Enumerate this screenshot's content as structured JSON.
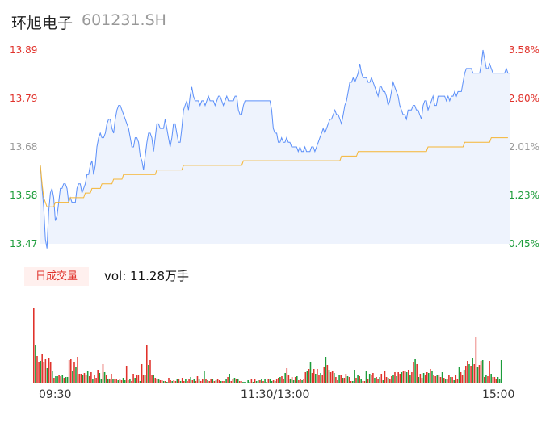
{
  "header": {
    "name": "环旭电子",
    "code": "601231.SH"
  },
  "volume_panel": {
    "tab_label": "日成交量",
    "vol_text": "vol: 11.28万手"
  },
  "x_axis": {
    "labels": [
      "09:30",
      "11:30/13:00",
      "15:00"
    ]
  },
  "colors": {
    "price_line": "#5b8ff9",
    "avg_line": "#f5b533",
    "area_fill": "#eef3fd",
    "up": "#e0322b",
    "down": "#1c9c3a"
  },
  "chart_data": [
    {
      "type": "line",
      "title": "环旭电子 601231.SH",
      "y_left_ticks": [
        "13.89",
        "13.79",
        "13.68",
        "13.58",
        "13.47"
      ],
      "y_right_ticks": [
        "3.58%",
        "2.80%",
        "2.01%",
        "1.23%",
        "0.45%"
      ],
      "ylim": [
        13.47,
        13.89
      ],
      "x_ticks": [
        "09:30",
        "11:30/13:00",
        "15:00"
      ],
      "series": [
        {
          "values": [
            13.64,
            13.59,
            13.55,
            13.48,
            13.46,
            13.54,
            13.58,
            13.59,
            13.57,
            13.52,
            13.53,
            13.56,
            13.59,
            13.59,
            13.6,
            13.6,
            13.59,
            13.56,
            13.57,
            13.56,
            13.56,
            13.56,
            13.59,
            13.6,
            13.6,
            13.58,
            13.59,
            13.6,
            13.62,
            13.62,
            13.64,
            13.65,
            13.62,
            13.64,
            13.68,
            13.7,
            13.71,
            13.7,
            13.7,
            13.71,
            13.73,
            13.74,
            13.74,
            13.72,
            13.71,
            13.74,
            13.76,
            13.77,
            13.77,
            13.76,
            13.75,
            13.74,
            13.73,
            13.72,
            13.7,
            13.68,
            13.68,
            13.7,
            13.7,
            13.69,
            13.66,
            13.65,
            13.63,
            13.66,
            13.69,
            13.71,
            13.71,
            13.7,
            13.67,
            13.7,
            13.73,
            13.73,
            13.72,
            13.72,
            13.72,
            13.74,
            13.72,
            13.7,
            13.68,
            13.7,
            13.73,
            13.73,
            13.71,
            13.69,
            13.69,
            13.72,
            13.76,
            13.77,
            13.78,
            13.76,
            13.79,
            13.81,
            13.79,
            13.78,
            13.78,
            13.78,
            13.77,
            13.78,
            13.78,
            13.77,
            13.78,
            13.79,
            13.78,
            13.78,
            13.78,
            13.77,
            13.78,
            13.79,
            13.79,
            13.78,
            13.77,
            13.78,
            13.79,
            13.78,
            13.78,
            13.78,
            13.78,
            13.79,
            13.79,
            13.76,
            13.75,
            13.75,
            13.77,
            13.78,
            13.78,
            13.78,
            13.78,
            13.78,
            13.78,
            13.78,
            13.78,
            13.78,
            13.78,
            13.78,
            13.78,
            13.78,
            13.78,
            13.78,
            13.78,
            13.76,
            13.72,
            13.71,
            13.71,
            13.69,
            13.69,
            13.7,
            13.69,
            13.69,
            13.7,
            13.69,
            13.69,
            13.68,
            13.68,
            13.68,
            13.68,
            13.67,
            13.68,
            13.67,
            13.67,
            13.68,
            13.67,
            13.67,
            13.67,
            13.68,
            13.68,
            13.67,
            13.68,
            13.69,
            13.7,
            13.71,
            13.72,
            13.71,
            13.72,
            13.73,
            13.74,
            13.74,
            13.75,
            13.76,
            13.75,
            13.75,
            13.74,
            13.73,
            13.75,
            13.77,
            13.78,
            13.8,
            13.82,
            13.82,
            13.83,
            13.82,
            13.83,
            13.84,
            13.86,
            13.84,
            13.83,
            13.83,
            13.83,
            13.82,
            13.82,
            13.83,
            13.82,
            13.81,
            13.8,
            13.79,
            13.81,
            13.81,
            13.8,
            13.8,
            13.79,
            13.77,
            13.78,
            13.8,
            13.82,
            13.81,
            13.8,
            13.79,
            13.77,
            13.76,
            13.75,
            13.75,
            13.74,
            13.76,
            13.76,
            13.76,
            13.77,
            13.77,
            13.76,
            13.76,
            13.75,
            13.74,
            13.77,
            13.78,
            13.78,
            13.76,
            13.77,
            13.78,
            13.79,
            13.77,
            13.77,
            13.79,
            13.79,
            13.79,
            13.79,
            13.79,
            13.78,
            13.79,
            13.78,
            13.79,
            13.79,
            13.8,
            13.79,
            13.8,
            13.8,
            13.8,
            13.82,
            13.84,
            13.85,
            13.85,
            13.85,
            13.85,
            13.84,
            13.84,
            13.84,
            13.84,
            13.84,
            13.86,
            13.89,
            13.87,
            13.85,
            13.85,
            13.86,
            13.85,
            13.84,
            13.84,
            13.84,
            13.84,
            13.84,
            13.84,
            13.84,
            13.84,
            13.85,
            13.84,
            13.84
          ]
        },
        {
          "values": [
            13.64,
            13.6,
            13.57,
            13.56,
            13.55,
            13.55,
            13.55,
            13.55,
            13.55,
            13.56,
            13.56,
            13.56,
            13.56,
            13.56,
            13.56,
            13.56,
            13.56,
            13.56,
            13.57,
            13.57,
            13.57,
            13.57,
            13.57,
            13.57,
            13.57,
            13.57,
            13.57,
            13.58,
            13.58,
            13.58,
            13.58,
            13.59,
            13.59,
            13.59,
            13.59,
            13.59,
            13.59,
            13.6,
            13.6,
            13.6,
            13.6,
            13.6,
            13.6,
            13.6,
            13.61,
            13.61,
            13.61,
            13.61,
            13.61,
            13.61,
            13.62,
            13.62,
            13.62,
            13.62,
            13.62,
            13.62,
            13.62,
            13.62,
            13.62,
            13.62,
            13.62,
            13.62,
            13.62,
            13.62,
            13.62,
            13.62,
            13.62,
            13.62,
            13.62,
            13.62,
            13.63,
            13.63,
            13.63,
            13.63,
            13.63,
            13.63,
            13.63,
            13.63,
            13.63,
            13.63,
            13.63,
            13.63,
            13.63,
            13.63,
            13.63,
            13.63,
            13.64,
            13.64,
            13.64,
            13.64,
            13.64,
            13.64,
            13.64,
            13.64,
            13.64,
            13.64,
            13.64,
            13.64,
            13.64,
            13.64,
            13.64,
            13.64,
            13.64,
            13.64,
            13.64,
            13.64,
            13.64,
            13.64,
            13.64,
            13.64,
            13.64,
            13.64,
            13.64,
            13.64,
            13.64,
            13.64,
            13.64,
            13.64,
            13.64,
            13.64,
            13.64,
            13.64,
            13.65,
            13.65,
            13.65,
            13.65,
            13.65,
            13.65,
            13.65,
            13.65,
            13.65,
            13.65,
            13.65,
            13.65,
            13.65,
            13.65,
            13.65,
            13.65,
            13.65,
            13.65,
            13.65,
            13.65,
            13.65,
            13.65,
            13.65,
            13.65,
            13.65,
            13.65,
            13.65,
            13.65,
            13.65,
            13.65,
            13.65,
            13.65,
            13.65,
            13.65,
            13.65,
            13.65,
            13.65,
            13.65,
            13.65,
            13.65,
            13.65,
            13.65,
            13.65,
            13.65,
            13.65,
            13.65,
            13.65,
            13.65,
            13.65,
            13.65,
            13.65,
            13.65,
            13.65,
            13.65,
            13.65,
            13.65,
            13.65,
            13.65,
            13.65,
            13.66,
            13.66,
            13.66,
            13.66,
            13.66,
            13.66,
            13.66,
            13.66,
            13.66,
            13.66,
            13.67,
            13.67,
            13.67,
            13.67,
            13.67,
            13.67,
            13.67,
            13.67,
            13.67,
            13.67,
            13.67,
            13.67,
            13.67,
            13.67,
            13.67,
            13.67,
            13.67,
            13.67,
            13.67,
            13.67,
            13.67,
            13.67,
            13.67,
            13.67,
            13.67,
            13.67,
            13.67,
            13.67,
            13.67,
            13.67,
            13.67,
            13.67,
            13.67,
            13.67,
            13.67,
            13.67,
            13.67,
            13.67,
            13.67,
            13.67,
            13.67,
            13.67,
            13.68,
            13.68,
            13.68,
            13.68,
            13.68,
            13.68,
            13.68,
            13.68,
            13.68,
            13.68,
            13.68,
            13.68,
            13.68,
            13.68,
            13.68,
            13.68,
            13.68,
            13.68,
            13.68,
            13.68,
            13.68,
            13.68,
            13.69,
            13.69,
            13.69,
            13.69,
            13.69,
            13.69,
            13.69,
            13.69,
            13.69,
            13.69,
            13.69,
            13.69,
            13.69,
            13.69,
            13.69,
            13.69,
            13.7,
            13.7,
            13.7,
            13.7,
            13.7,
            13.7,
            13.7,
            13.7,
            13.7,
            13.7,
            13.7
          ]
        }
      ]
    },
    {
      "type": "bar",
      "title": "日成交量",
      "values": [
        93,
        48,
        34,
        27,
        28,
        36,
        26,
        30,
        19,
        32,
        27,
        15,
        7,
        9,
        9,
        10,
        9,
        11,
        7,
        8,
        8,
        29,
        30,
        16,
        27,
        20,
        33,
        12,
        12,
        11,
        13,
        11,
        15,
        9,
        14,
        5,
        10,
        7,
        17,
        13,
        5,
        24,
        14,
        10,
        5,
        6,
        12,
        5,
        6,
        6,
        4,
        6,
        4,
        7,
        4,
        21,
        4,
        6,
        3,
        12,
        7,
        10,
        11,
        3,
        24,
        11,
        11,
        48,
        23,
        29,
        10,
        10,
        7,
        6,
        5,
        4,
        4,
        3,
        3,
        2,
        7,
        4,
        3,
        4,
        3,
        6,
        6,
        3,
        7,
        3,
        5,
        3,
        5,
        8,
        4,
        5,
        3,
        9,
        5,
        3,
        5,
        15,
        6,
        4,
        3,
        5,
        6,
        3,
        4,
        5,
        4,
        3,
        3,
        3,
        6,
        8,
        12,
        3,
        5,
        7,
        5,
        5,
        3,
        3,
        2,
        2,
        1,
        4,
        2,
        5,
        2,
        6,
        3,
        4,
        4,
        6,
        3,
        5,
        2,
        6,
        6,
        3,
        4,
        3,
        6,
        7,
        8,
        9,
        6,
        13,
        19,
        10,
        5,
        8,
        4,
        8,
        9,
        4,
        6,
        4,
        6,
        14,
        15,
        18,
        27,
        13,
        18,
        12,
        18,
        10,
        13,
        10,
        20,
        33,
        23,
        17,
        14,
        16,
        13,
        8,
        4,
        11,
        11,
        7,
        7,
        12,
        9,
        8,
        3,
        3,
        17,
        7,
        11,
        9,
        5,
        3,
        3,
        15,
        5,
        12,
        11,
        13,
        7,
        8,
        6,
        8,
        12,
        4,
        15,
        8,
        7,
        5,
        9,
        10,
        14,
        9,
        14,
        12,
        14,
        16,
        15,
        14,
        17,
        11,
        14,
        27,
        30,
        24,
        8,
        12,
        7,
        13,
        11,
        14,
        13,
        18,
        15,
        10,
        9,
        10,
        11,
        8,
        14,
        7,
        5,
        6,
        10,
        8,
        8,
        4,
        11,
        6,
        20,
        14,
        10,
        17,
        22,
        28,
        24,
        22,
        31,
        24,
        58,
        20,
        23,
        28,
        29,
        8,
        11,
        9,
        28,
        12,
        8,
        8,
        5,
        8,
        6,
        29
      ],
      "directions": [
        1,
        -1,
        1,
        1,
        -1,
        1,
        1,
        1,
        -1,
        1,
        1,
        -1,
        1,
        -1,
        -1,
        1,
        1,
        -1,
        1,
        -1,
        -1,
        1,
        1,
        -1,
        1,
        -1,
        1,
        1,
        1,
        -1,
        1,
        1,
        -1,
        1,
        1,
        -1,
        1,
        1,
        1,
        -1,
        -1,
        1,
        -1,
        1,
        -1,
        1,
        1,
        -1,
        1,
        1,
        -1,
        1,
        1,
        -1,
        -1,
        1,
        1,
        -1,
        1,
        1,
        -1,
        1,
        1,
        -1,
        1,
        1,
        -1,
        1,
        -1,
        1,
        1,
        -1,
        1,
        1,
        -1,
        1,
        1,
        -1,
        1,
        -1,
        1,
        1,
        -1,
        1,
        1,
        -1,
        1,
        -1,
        1,
        1,
        -1,
        1,
        1,
        -1,
        1,
        -1,
        1,
        1,
        -1,
        1,
        1,
        -1,
        1,
        -1,
        1,
        1,
        -1,
        1,
        -1,
        1,
        1,
        -1,
        1,
        1,
        -1,
        1,
        -1,
        1,
        1,
        -1,
        1,
        -1,
        1,
        1,
        -1,
        -1,
        1,
        -1,
        -1,
        1,
        -1,
        1,
        -1,
        -1,
        1,
        -1,
        1,
        -1,
        -1,
        1,
        -1,
        -1,
        1,
        -1,
        1,
        1,
        -1,
        1,
        1,
        -1,
        1,
        1,
        -1,
        1,
        -1,
        1,
        -1,
        1,
        1,
        -1,
        1,
        1,
        -1,
        1,
        -1,
        1,
        1,
        -1,
        1,
        1,
        -1,
        1,
        1,
        -1,
        1,
        -1,
        1,
        1,
        -1,
        1,
        1,
        -1,
        1,
        -1,
        1,
        1,
        -1,
        1,
        1,
        -1,
        -1,
        1,
        -1,
        1,
        -1,
        1,
        1,
        -1,
        1,
        -1,
        1,
        1,
        -1,
        1,
        1,
        -1,
        1,
        -1,
        1,
        1,
        -1,
        1,
        1,
        -1,
        1,
        -1,
        1,
        1,
        -1,
        1,
        1,
        -1,
        1,
        -1,
        1,
        1,
        -1,
        1,
        -1,
        1,
        1,
        -1,
        1,
        1,
        -1,
        1,
        -1,
        1,
        1,
        -1,
        1,
        1,
        -1,
        1,
        -1,
        1,
        1,
        -1,
        1,
        -1,
        1,
        1,
        -1,
        1,
        1,
        -1,
        1,
        1,
        -1,
        1,
        -1,
        1,
        1,
        -1,
        1,
        1,
        -1,
        1,
        -1,
        1,
        1,
        -1,
        1,
        1,
        1
      ]
    }
  ]
}
